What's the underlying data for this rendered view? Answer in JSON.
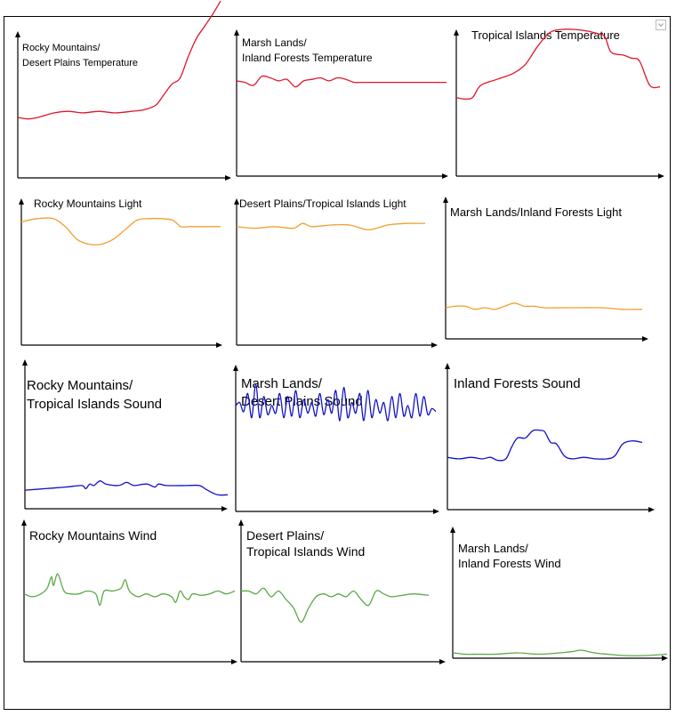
{
  "colors": {
    "temperature": "#e0162b",
    "light": "#f0a030",
    "sound": "#1010c8",
    "wind": "#5aa845"
  },
  "corner_icon": "dropdown-arrow-icon",
  "chart_data": [
    {
      "type": "line",
      "title": [
        "Rocky Mountains/",
        "Desert Plains Temperature"
      ],
      "xlabel": "",
      "ylabel": "",
      "series": [
        {
          "x": [
            0,
            0.05,
            0.1,
            0.18,
            0.25,
            0.32,
            0.4,
            0.48,
            0.56,
            0.62,
            0.68,
            0.72,
            0.76,
            0.8,
            0.84,
            0.88,
            0.92,
            0.96,
            1.0
          ],
          "values": [
            0.4,
            0.39,
            0.4,
            0.43,
            0.44,
            0.43,
            0.44,
            0.43,
            0.44,
            0.45,
            0.48,
            0.55,
            0.62,
            0.66,
            0.8,
            0.92,
            1.0,
            1.08,
            1.17
          ]
        }
      ]
    },
    {
      "type": "line",
      "title": [
        "Marsh Lands/",
        "Inland Forests Temperature"
      ],
      "xlabel": "",
      "ylabel": "",
      "series": [
        {
          "x": [
            0,
            0.04,
            0.08,
            0.12,
            0.16,
            0.2,
            0.24,
            0.28,
            0.32,
            0.36,
            0.4,
            0.44,
            0.48,
            0.52,
            0.56,
            0.6,
            0.7,
            0.8,
            0.9,
            1.0
          ],
          "values": [
            0.63,
            0.62,
            0.6,
            0.66,
            0.65,
            0.63,
            0.64,
            0.59,
            0.63,
            0.64,
            0.65,
            0.63,
            0.65,
            0.64,
            0.62,
            0.62,
            0.62,
            0.62,
            0.62,
            0.62
          ]
        }
      ]
    },
    {
      "type": "line",
      "title": [
        "Tropical Islands Temperature"
      ],
      "xlabel": "",
      "ylabel": "",
      "series": [
        {
          "x": [
            0,
            0.04,
            0.08,
            0.12,
            0.2,
            0.28,
            0.34,
            0.4,
            0.46,
            0.52,
            0.58,
            0.64,
            0.7,
            0.73,
            0.76,
            0.82,
            0.86,
            0.9,
            0.95,
            1.0
          ],
          "values": [
            0.52,
            0.51,
            0.52,
            0.6,
            0.64,
            0.68,
            0.74,
            0.86,
            0.95,
            0.97,
            0.97,
            0.96,
            0.94,
            0.92,
            0.82,
            0.8,
            0.78,
            0.76,
            0.6,
            0.59
          ]
        }
      ]
    },
    {
      "type": "line",
      "title": [
        "Rocky Mountains Light"
      ],
      "xlabel": "",
      "ylabel": "",
      "series": [
        {
          "x": [
            0,
            0.08,
            0.16,
            0.22,
            0.28,
            0.34,
            0.4,
            0.46,
            0.52,
            0.58,
            0.64,
            0.7,
            0.76,
            0.8,
            0.84,
            0.9,
            1.0
          ],
          "values": [
            0.77,
            0.79,
            0.79,
            0.74,
            0.66,
            0.63,
            0.63,
            0.66,
            0.72,
            0.78,
            0.79,
            0.79,
            0.78,
            0.74,
            0.74,
            0.74,
            0.74
          ]
        }
      ]
    },
    {
      "type": "line",
      "title": [
        "Desert Plains/Tropical Islands Light"
      ],
      "xlabel": "",
      "ylabel": "",
      "series": [
        {
          "x": [
            0,
            0.1,
            0.2,
            0.3,
            0.35,
            0.4,
            0.5,
            0.6,
            0.7,
            0.8,
            0.9,
            1.0
          ],
          "values": [
            0.74,
            0.73,
            0.74,
            0.73,
            0.76,
            0.74,
            0.75,
            0.75,
            0.72,
            0.75,
            0.76,
            0.76
          ]
        }
      ]
    },
    {
      "type": "line",
      "title": [
        "Marsh Lands/Inland Forests Light"
      ],
      "xlabel": "",
      "ylabel": "",
      "series": [
        {
          "x": [
            0,
            0.05,
            0.1,
            0.15,
            0.2,
            0.25,
            0.3,
            0.35,
            0.4,
            0.45,
            0.5,
            0.6,
            0.7,
            0.8,
            0.9,
            1.0
          ],
          "values": [
            0.2,
            0.21,
            0.21,
            0.19,
            0.2,
            0.19,
            0.21,
            0.23,
            0.21,
            0.21,
            0.2,
            0.2,
            0.2,
            0.2,
            0.19,
            0.19
          ]
        }
      ]
    },
    {
      "type": "line",
      "title": [
        "Rocky Mountains/",
        "Tropical Islands Sound"
      ],
      "xlabel": "",
      "ylabel": "",
      "series": [
        {
          "x": [
            0,
            0.1,
            0.2,
            0.28,
            0.3,
            0.32,
            0.34,
            0.37,
            0.4,
            0.46,
            0.5,
            0.52,
            0.54,
            0.6,
            0.64,
            0.66,
            0.7,
            0.8,
            0.86,
            0.9,
            0.95,
            1.0
          ],
          "values": [
            0.12,
            0.13,
            0.14,
            0.15,
            0.13,
            0.16,
            0.15,
            0.18,
            0.16,
            0.15,
            0.17,
            0.16,
            0.15,
            0.16,
            0.14,
            0.16,
            0.15,
            0.15,
            0.15,
            0.12,
            0.09,
            0.09
          ]
        }
      ]
    },
    {
      "type": "line",
      "title": [
        "Marsh Lands/",
        "Desert Plains Sound"
      ],
      "xlabel": "",
      "ylabel": "",
      "series": [
        {
          "x": [
            0,
            0.02,
            0.04,
            0.06,
            0.08,
            0.1,
            0.12,
            0.14,
            0.16,
            0.18,
            0.2,
            0.22,
            0.24,
            0.26,
            0.28,
            0.3,
            0.32,
            0.34,
            0.36,
            0.38,
            0.4,
            0.42,
            0.44,
            0.46,
            0.48,
            0.5,
            0.52,
            0.54,
            0.56,
            0.58,
            0.6,
            0.62,
            0.64,
            0.66,
            0.68,
            0.7,
            0.72,
            0.74,
            0.76,
            0.78,
            0.8,
            0.82,
            0.84,
            0.86,
            0.88,
            0.9,
            0.92,
            0.94,
            0.96,
            0.98,
            1.0
          ],
          "values": [
            0.7,
            0.72,
            0.66,
            0.78,
            0.62,
            0.84,
            0.62,
            0.76,
            0.64,
            0.7,
            0.65,
            0.78,
            0.62,
            0.76,
            0.63,
            0.8,
            0.62,
            0.74,
            0.65,
            0.72,
            0.63,
            0.78,
            0.64,
            0.74,
            0.65,
            0.8,
            0.6,
            0.82,
            0.62,
            0.72,
            0.65,
            0.78,
            0.6,
            0.8,
            0.62,
            0.74,
            0.65,
            0.72,
            0.6,
            0.76,
            0.62,
            0.78,
            0.63,
            0.7,
            0.62,
            0.78,
            0.63,
            0.76,
            0.64,
            0.68,
            0.66
          ]
        }
      ]
    },
    {
      "type": "line",
      "title": [
        "Inland Forests Sound"
      ],
      "xlabel": "",
      "ylabel": "",
      "series": [
        {
          "x": [
            0,
            0.06,
            0.12,
            0.18,
            0.22,
            0.26,
            0.3,
            0.33,
            0.36,
            0.4,
            0.44,
            0.48,
            0.5,
            0.53,
            0.56,
            0.6,
            0.64,
            0.7,
            0.76,
            0.82,
            0.86,
            0.9,
            0.95,
            1.0
          ],
          "values": [
            0.35,
            0.34,
            0.35,
            0.34,
            0.35,
            0.33,
            0.34,
            0.42,
            0.48,
            0.48,
            0.53,
            0.53,
            0.52,
            0.45,
            0.44,
            0.36,
            0.34,
            0.35,
            0.34,
            0.34,
            0.36,
            0.44,
            0.46,
            0.45
          ]
        }
      ]
    },
    {
      "type": "line",
      "title": [
        "Rocky Mountains Wind"
      ],
      "xlabel": "",
      "ylabel": "",
      "series": [
        {
          "x": [
            0,
            0.04,
            0.08,
            0.11,
            0.13,
            0.14,
            0.16,
            0.19,
            0.22,
            0.26,
            0.3,
            0.34,
            0.36,
            0.38,
            0.42,
            0.46,
            0.48,
            0.5,
            0.54,
            0.58,
            0.62,
            0.66,
            0.7,
            0.72,
            0.74,
            0.76,
            0.78,
            0.8,
            0.84,
            0.88,
            0.92,
            0.96,
            1.0
          ],
          "values": [
            0.48,
            0.46,
            0.48,
            0.52,
            0.6,
            0.54,
            0.62,
            0.5,
            0.48,
            0.48,
            0.5,
            0.48,
            0.4,
            0.5,
            0.5,
            0.52,
            0.58,
            0.5,
            0.46,
            0.48,
            0.46,
            0.48,
            0.46,
            0.42,
            0.5,
            0.46,
            0.44,
            0.48,
            0.47,
            0.48,
            0.5,
            0.48,
            0.5
          ]
        }
      ]
    },
    {
      "type": "line",
      "title": [
        "Desert Plains/",
        "Tropical Islands Wind"
      ],
      "xlabel": "",
      "ylabel": "",
      "series": [
        {
          "x": [
            0,
            0.04,
            0.08,
            0.12,
            0.16,
            0.2,
            0.24,
            0.28,
            0.32,
            0.36,
            0.4,
            0.44,
            0.48,
            0.52,
            0.56,
            0.6,
            0.64,
            0.68,
            0.72,
            0.76,
            0.8,
            0.86,
            0.92,
            1.0
          ],
          "values": [
            0.5,
            0.5,
            0.48,
            0.52,
            0.46,
            0.5,
            0.44,
            0.38,
            0.28,
            0.38,
            0.46,
            0.48,
            0.46,
            0.48,
            0.46,
            0.5,
            0.44,
            0.4,
            0.5,
            0.48,
            0.46,
            0.47,
            0.48,
            0.47
          ]
        }
      ]
    },
    {
      "type": "line",
      "title": [
        "Marsh Lands/",
        "Inland Forests Wind"
      ],
      "xlabel": "",
      "ylabel": "",
      "series": [
        {
          "x": [
            0,
            0.06,
            0.12,
            0.2,
            0.3,
            0.4,
            0.5,
            0.56,
            0.6,
            0.66,
            0.72,
            0.8,
            0.9,
            1.0
          ],
          "values": [
            0.04,
            0.03,
            0.03,
            0.03,
            0.04,
            0.03,
            0.04,
            0.05,
            0.06,
            0.04,
            0.03,
            0.02,
            0.02,
            0.03
          ]
        }
      ]
    }
  ]
}
